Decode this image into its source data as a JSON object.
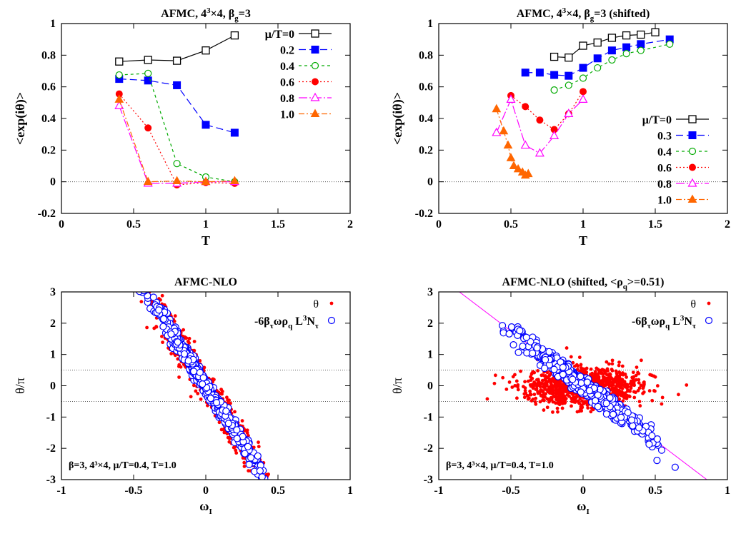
{
  "chart_data": [
    {
      "type": "line",
      "title_parts": {
        "prefix": "AFMC, 4",
        "sup": "3",
        "mid": "×4, β",
        "sub": "g",
        "suffix": "=3"
      },
      "xlabel": "T",
      "ylabel": "<exp(iθ)>",
      "xlim": [
        0,
        2
      ],
      "ylim": [
        -0.2,
        1
      ],
      "xticks": [
        "0",
        "0.5",
        "1",
        "1.5",
        "2"
      ],
      "xtick_values": [
        0,
        0.5,
        1,
        1.5,
        2
      ],
      "yticks": [
        "-0.2",
        "0",
        "0.2",
        "0.4",
        "0.6",
        "0.8",
        "1"
      ],
      "ytick_values": [
        -0.2,
        0,
        0.2,
        0.4,
        0.6,
        0.8,
        1
      ],
      "hlines": [
        0
      ],
      "legend": "top-right",
      "series": [
        {
          "name": "μ/T=0",
          "color": "#000000",
          "marker": "square-open",
          "dash": "",
          "x": [
            0.4,
            0.6,
            0.8,
            1.0,
            1.2
          ],
          "y": [
            0.76,
            0.77,
            0.765,
            0.83,
            0.925
          ]
        },
        {
          "name": "0.2",
          "color": "#0000ff",
          "marker": "square-filled",
          "dash": "10,5",
          "x": [
            0.4,
            0.6,
            0.8,
            1.0,
            1.2
          ],
          "y": [
            0.65,
            0.64,
            0.61,
            0.36,
            0.31
          ]
        },
        {
          "name": "0.4",
          "color": "#00aa00",
          "marker": "circle-open",
          "dash": "4,4",
          "x": [
            0.4,
            0.6,
            0.8,
            1.0,
            1.2
          ],
          "y": [
            0.675,
            0.685,
            0.115,
            0.03,
            0.0
          ]
        },
        {
          "name": "0.6",
          "color": "#ff0000",
          "marker": "circle-filled",
          "dash": "2,3",
          "x": [
            0.4,
            0.6,
            0.8,
            1.0,
            1.2
          ],
          "y": [
            0.555,
            0.34,
            -0.02,
            -0.005,
            -0.01
          ]
        },
        {
          "name": "0.8",
          "color": "#ff00ff",
          "marker": "triangle-open",
          "dash": "12,3,2,3",
          "x": [
            0.4,
            0.6,
            0.8,
            1.0,
            1.2
          ],
          "y": [
            0.48,
            -0.01,
            -0.01,
            0.0,
            0.0
          ]
        },
        {
          "name": "1.0",
          "color": "#ff6600",
          "marker": "triangle-filled",
          "dash": "8,3,2,3",
          "x": [
            0.4,
            0.6,
            0.8,
            1.0,
            1.2
          ],
          "y": [
            0.52,
            0.0,
            0.005,
            0.0,
            0.005
          ]
        }
      ]
    },
    {
      "type": "line",
      "title_parts": {
        "prefix": "AFMC, 4",
        "sup": "3",
        "mid": "×4, β",
        "sub": "g",
        "suffix": "=3 (shifted)"
      },
      "xlabel": "T",
      "ylabel": "<exp(iθ)>",
      "xlim": [
        0,
        2
      ],
      "ylim": [
        -0.2,
        1
      ],
      "xticks": [
        "0",
        "0.5",
        "1",
        "1.5",
        "2"
      ],
      "xtick_values": [
        0,
        0.5,
        1,
        1.5,
        2
      ],
      "yticks": [
        "-0.2",
        "0",
        "0.2",
        "0.4",
        "0.6",
        "0.8",
        "1"
      ],
      "ytick_values": [
        -0.2,
        0,
        0.2,
        0.4,
        0.6,
        0.8,
        1
      ],
      "hlines": [
        0
      ],
      "legend": "center-right",
      "series": [
        {
          "name": "μ/T=0",
          "color": "#000000",
          "marker": "square-open",
          "dash": "",
          "x": [
            0.8,
            0.9,
            1.0,
            1.1,
            1.2,
            1.3,
            1.4,
            1.5
          ],
          "y": [
            0.79,
            0.785,
            0.86,
            0.88,
            0.91,
            0.925,
            0.93,
            0.945
          ]
        },
        {
          "name": "0.3",
          "color": "#0000ff",
          "marker": "square-filled",
          "dash": "10,5",
          "x": [
            0.6,
            0.7,
            0.8,
            0.9,
            1.0,
            1.1,
            1.2,
            1.3,
            1.4,
            1.6
          ],
          "y": [
            0.69,
            0.69,
            0.675,
            0.67,
            0.72,
            0.78,
            0.83,
            0.85,
            0.87,
            0.9
          ]
        },
        {
          "name": "0.4",
          "color": "#00aa00",
          "marker": "circle-open",
          "dash": "4,4",
          "x": [
            0.8,
            0.9,
            1.0,
            1.1,
            1.2,
            1.3,
            1.4,
            1.6
          ],
          "y": [
            0.58,
            0.61,
            0.655,
            0.72,
            0.77,
            0.81,
            0.83,
            0.87
          ]
        },
        {
          "name": "0.6",
          "color": "#ff0000",
          "marker": "circle-filled",
          "dash": "2,3",
          "x": [
            0.5,
            0.6,
            0.7,
            0.8,
            0.9,
            1.0
          ],
          "y": [
            0.545,
            0.475,
            0.39,
            0.33,
            0.43,
            0.57
          ]
        },
        {
          "name": "0.8",
          "color": "#ff00ff",
          "marker": "triangle-open",
          "dash": "12,3,2,3",
          "x": [
            0.4,
            0.5,
            0.6,
            0.7,
            0.8,
            0.9,
            1.0
          ],
          "y": [
            0.31,
            0.52,
            0.23,
            0.18,
            0.29,
            0.43,
            0.52
          ]
        },
        {
          "name": "1.0",
          "color": "#ff6600",
          "marker": "triangle-filled",
          "dash": "8,3,2,3",
          "x": [
            0.4,
            0.45,
            0.48,
            0.5,
            0.52,
            0.55,
            0.58,
            0.6,
            0.62
          ],
          "y": [
            0.46,
            0.32,
            0.23,
            0.15,
            0.1,
            0.08,
            0.06,
            0.04,
            0.05
          ]
        }
      ]
    },
    {
      "type": "scatter",
      "title": "AFMC-NLO",
      "xlabel_parts": {
        "main": "ω",
        "sub": "I"
      },
      "ylabel": "θ/π",
      "xlim": [
        -1,
        1
      ],
      "ylim": [
        -3,
        3
      ],
      "xticks": [
        "-1",
        "-0.5",
        "0",
        "0.5",
        "1"
      ],
      "xtick_values": [
        -1,
        -0.5,
        0,
        0.5,
        1
      ],
      "yticks": [
        "-3",
        "-2",
        "-1",
        "0",
        "1",
        "2",
        "3"
      ],
      "ytick_values": [
        -3,
        -2,
        -1,
        0,
        1,
        2,
        3
      ],
      "hlines": [
        0.5,
        -0.5
      ],
      "annotation": "β=3, 4³×4, μ/T=0.4, T=1.0",
      "legend": "top-right",
      "series": [
        {
          "name": "θ",
          "color": "#ff0000",
          "marker": "dot",
          "shape": "diagonal",
          "slope": -7.2,
          "center_spread": 0.22,
          "x_spread": 0.18,
          "count": 900
        },
        {
          "name_parts": {
            "a": "-6β",
            "b": "τ",
            "c": "ωρ",
            "d": "q",
            "e": " L",
            "f": "3",
            "g": "N",
            "h": "τ"
          },
          "color": "#0000ff",
          "marker": "circle-open",
          "shape": "line",
          "slope": -7.2,
          "spread": 0.12,
          "x_spread": 0.18,
          "count": 700
        }
      ]
    },
    {
      "type": "scatter",
      "title": "AFMC-NLO (shifted, <ρ_q>=0.51)",
      "title_parts": {
        "prefix": "AFMC-NLO (shifted, <ρ",
        "sub": "q",
        "suffix": ">=0.51)"
      },
      "xlabel_parts": {
        "main": "ω",
        "sub": "I"
      },
      "ylabel": "θ/π",
      "xlim": [
        -1,
        1
      ],
      "ylim": [
        -3,
        3
      ],
      "xticks": [
        "-1",
        "-0.5",
        "0",
        "0.5",
        "1"
      ],
      "xtick_values": [
        -1,
        -0.5,
        0,
        0.5,
        1
      ],
      "yticks": [
        "-3",
        "-2",
        "-1",
        "0",
        "1",
        "2",
        "3"
      ],
      "ytick_values": [
        -3,
        -2,
        -1,
        0,
        1,
        2,
        3
      ],
      "hlines": [
        0.5,
        -0.5
      ],
      "fit_line": {
        "color": "#ff00ff",
        "slope": -3.5
      },
      "annotation": "β=3, 4³×4, μ/T=0.4, T=1.0",
      "legend": "top-right",
      "series": [
        {
          "name": "θ",
          "color": "#ff0000",
          "marker": "dot",
          "shape": "blob",
          "x_spread": 0.2,
          "y_spread": 0.28,
          "count": 1100
        },
        {
          "name_parts": {
            "a": "-6β",
            "b": "τ",
            "c": "ωρ",
            "d": "q",
            "e": " L",
            "f": "3",
            "g": "N",
            "h": "τ"
          },
          "color": "#0000ff",
          "marker": "circle-open",
          "shape": "line",
          "slope": -3.5,
          "spread": 0.12,
          "x_spread": 0.2,
          "count": 700
        }
      ]
    }
  ]
}
